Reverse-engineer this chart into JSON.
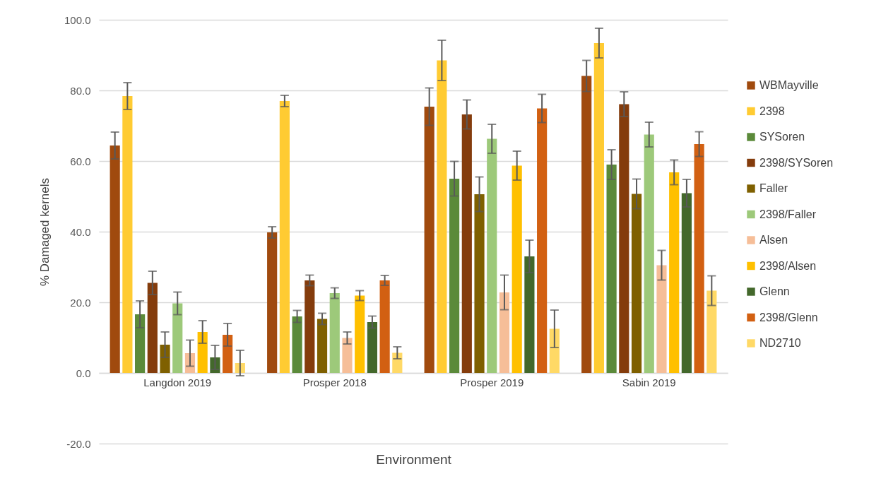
{
  "chart_data": {
    "type": "bar",
    "xlabel": "Environment",
    "ylabel": "% Damaged kernels",
    "categories": [
      "Langdon 2019",
      "Prosper 2018",
      "Prosper 2019",
      "Sabin 2019"
    ],
    "ylim": [
      -20,
      100
    ],
    "yticks": [
      {
        "value": -20,
        "label": "-20.0"
      },
      {
        "value": 0,
        "label": "0.0"
      },
      {
        "value": 20,
        "label": "20.0"
      },
      {
        "value": 40,
        "label": "40.0"
      },
      {
        "value": 60,
        "label": "60.0"
      },
      {
        "value": 80,
        "label": "80.0"
      },
      {
        "value": 100,
        "label": "100.0"
      }
    ],
    "grid": "y",
    "legend": "right",
    "series": [
      {
        "name": "WBMayville",
        "color": "#a04a0e",
        "values": [
          64.4,
          39.8,
          75.4,
          84.1
        ],
        "errors": [
          3.8,
          1.6,
          5.3,
          4.4
        ]
      },
      {
        "name": "2398",
        "color": "#ffcb32",
        "values": [
          78.4,
          77.0,
          88.5,
          93.4
        ],
        "errors": [
          3.8,
          1.6,
          5.7,
          4.2
        ]
      },
      {
        "name": "SYSoren",
        "color": "#5b8a3a",
        "values": [
          16.6,
          16.0,
          55.0,
          59.0
        ],
        "errors": [
          3.8,
          1.7,
          4.9,
          4.2
        ]
      },
      {
        "name": "2398/SYSoren",
        "color": "#843c0c",
        "values": [
          25.5,
          26.2,
          73.2,
          76.1
        ],
        "errors": [
          3.3,
          1.5,
          4.1,
          3.5
        ]
      },
      {
        "name": "Faller",
        "color": "#7f6000",
        "values": [
          8.0,
          15.3,
          50.6,
          50.7
        ],
        "errors": [
          3.6,
          1.6,
          4.9,
          4.2
        ]
      },
      {
        "name": "2398/Faller",
        "color": "#9dc97a",
        "values": [
          19.7,
          22.6,
          66.3,
          67.5
        ],
        "errors": [
          3.2,
          1.5,
          4.1,
          3.5
        ]
      },
      {
        "name": "Alsen",
        "color": "#f6be98",
        "values": [
          5.6,
          9.9,
          22.8,
          30.5
        ],
        "errors": [
          3.7,
          1.7,
          4.9,
          4.2
        ]
      },
      {
        "name": "2398/Alsen",
        "color": "#ffc000",
        "values": [
          11.6,
          21.9,
          58.7,
          56.8
        ],
        "errors": [
          3.2,
          1.4,
          4.1,
          3.5
        ]
      },
      {
        "name": "Glenn",
        "color": "#43682b",
        "values": [
          4.4,
          14.4,
          33.0,
          50.9
        ],
        "errors": [
          3.4,
          1.7,
          4.6,
          3.9
        ]
      },
      {
        "name": "2398/Glenn",
        "color": "#d26012",
        "values": [
          10.8,
          26.2,
          74.9,
          64.8
        ],
        "errors": [
          3.2,
          1.4,
          4.0,
          3.5
        ]
      },
      {
        "name": "ND2710",
        "color": "#ffd966",
        "values": [
          2.8,
          5.7,
          12.5,
          23.3
        ],
        "errors": [
          3.6,
          1.7,
          5.3,
          4.2
        ]
      }
    ]
  }
}
